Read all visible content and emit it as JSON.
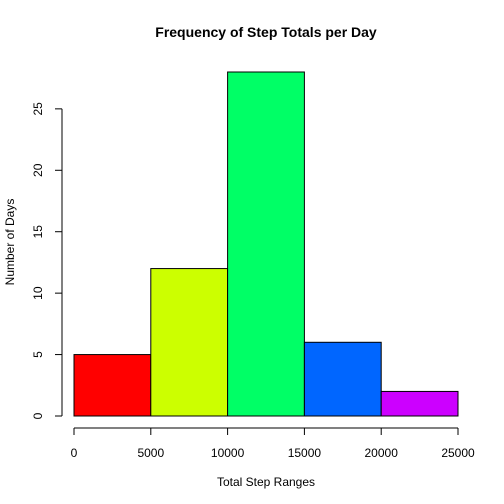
{
  "chart_data": {
    "type": "bar",
    "title": "Frequency of Step Totals per Day",
    "xlabel": "Total Step Ranges",
    "ylabel": "Number of Days",
    "bins": [
      {
        "from": 0,
        "to": 5000,
        "value": 5,
        "color": "#FF0000"
      },
      {
        "from": 5000,
        "to": 10000,
        "value": 12,
        "color": "#CCFF00"
      },
      {
        "from": 10000,
        "to": 15000,
        "value": 28,
        "color": "#00FF66"
      },
      {
        "from": 15000,
        "to": 20000,
        "value": 6,
        "color": "#0066FF"
      },
      {
        "from": 20000,
        "to": 25000,
        "value": 2,
        "color": "#CC00FF"
      }
    ],
    "xlim": [
      0,
      25000
    ],
    "ylim": [
      0,
      28
    ],
    "x_ticks": [
      0,
      5000,
      10000,
      15000,
      20000,
      25000
    ],
    "x_tick_labels": [
      "0",
      "5000",
      "10000",
      "15000",
      "20000",
      "25000"
    ],
    "y_ticks": [
      0,
      5,
      10,
      15,
      20,
      25
    ],
    "y_tick_labels": [
      "0",
      "5",
      "10",
      "15",
      "20",
      "25"
    ],
    "grid": false
  }
}
